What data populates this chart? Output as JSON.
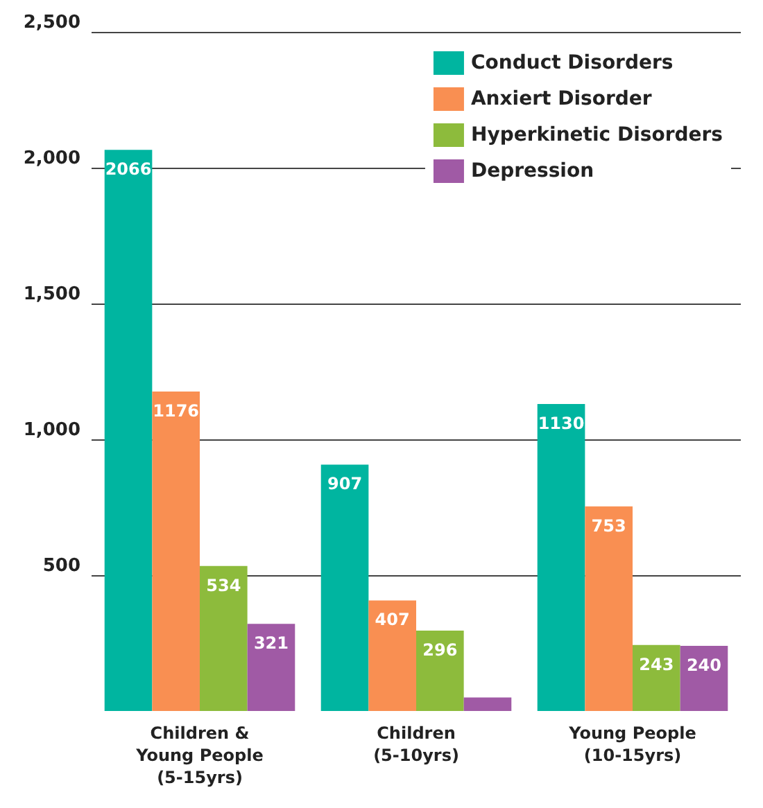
{
  "chart_data": {
    "type": "bar",
    "categories": [
      "Children &\nYoung People\n(5-15yrs)",
      "Children\n(5-10yrs)",
      "Young People\n(10-15yrs)"
    ],
    "series": [
      {
        "name": "Conduct Disorders",
        "color": "#00b5a0",
        "values": [
          2066,
          907,
          1130
        ],
        "value_labels": [
          "2066",
          "907",
          "1130"
        ]
      },
      {
        "name": "Anxiert Disorder",
        "color": "#f98f52",
        "values": [
          1176,
          407,
          753
        ],
        "value_labels": [
          "1176",
          "407",
          "753"
        ]
      },
      {
        "name": "Hyperkinetic Disorders",
        "color": "#8dbb3c",
        "values": [
          534,
          296,
          243
        ],
        "value_labels": [
          "534",
          "296",
          "243"
        ]
      },
      {
        "name": "Depression",
        "color": "#a05aa5",
        "values": [
          321,
          50,
          240
        ],
        "value_labels": [
          "321",
          null,
          "240"
        ]
      }
    ],
    "ylim": [
      0,
      2500
    ],
    "yticks": [
      {
        "value": 500,
        "label": "500"
      },
      {
        "value": 1000,
        "label": "1,000"
      },
      {
        "value": 1500,
        "label": "1,500"
      },
      {
        "value": 2000,
        "label": "2,000"
      },
      {
        "value": 2500,
        "label": "2,500"
      }
    ],
    "grid": "y",
    "legend": "top right"
  }
}
